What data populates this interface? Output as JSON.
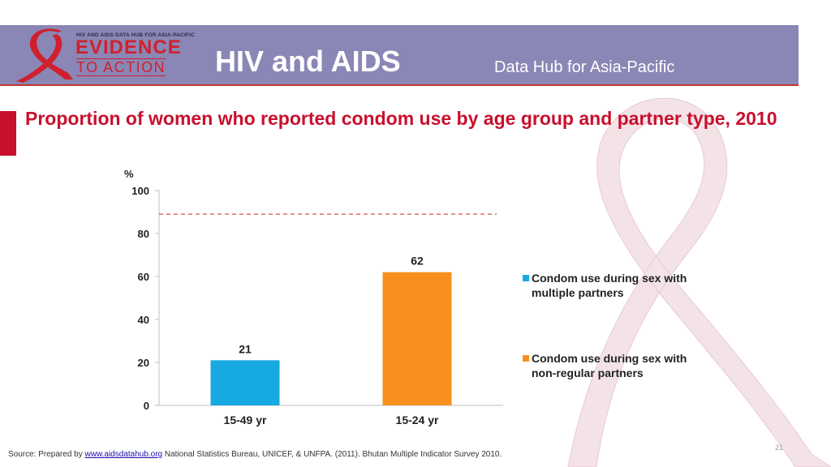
{
  "header": {
    "logo_top": "HIV AND AIDS DATA HUB FOR ASIA-PACIFIC",
    "logo_evidence": "EVIDENCE",
    "logo_to_action": "TO ACTION",
    "title": "HIV and AIDS",
    "subtitle": "Data Hub for Asia-Pacific"
  },
  "slide_title": "Proportion of women who reported condom use by age group and partner type, 2010",
  "chart_data": {
    "type": "bar",
    "ylabel": "%",
    "ylim": [
      0,
      100
    ],
    "yticks": [
      "0",
      "20",
      "40",
      "60",
      "80",
      "100"
    ],
    "categories": [
      "15-49 yr",
      "15-24 yr"
    ],
    "series": [
      {
        "name": "Condom use during sex with multiple partners",
        "color": "#17a9e1",
        "values": [
          21,
          null
        ]
      },
      {
        "name": "Condom use during sex with non-regular partners",
        "color": "#f7901e",
        "values": [
          null,
          62
        ]
      }
    ],
    "data_labels": [
      "21",
      "62"
    ],
    "reference_line": {
      "value": 89,
      "style": "dashed",
      "color": "#d9534f"
    },
    "legend_position": "right"
  },
  "source": {
    "prefix": "Source: Prepared by ",
    "link": "www.aidsdatahub.org",
    "suffix": " National Statistics Bureau, UNICEF, & UNFPA. (2011). Bhutan Multiple Indicator Survey 2010."
  },
  "page_number": "21"
}
